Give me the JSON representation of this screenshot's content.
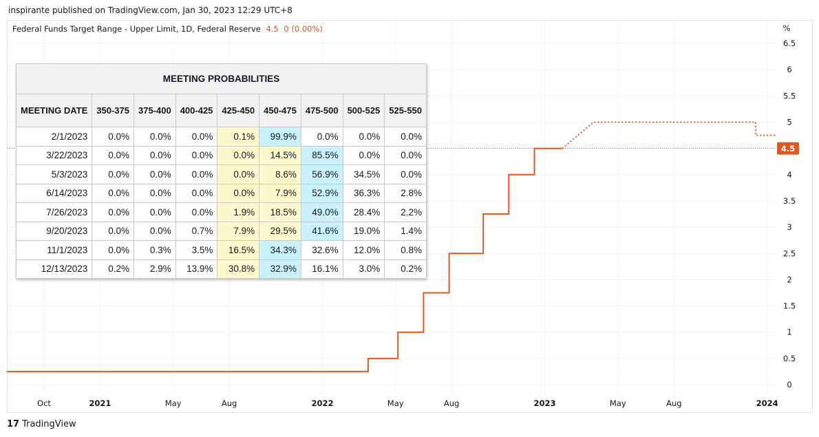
{
  "header": {
    "published": "inspirante published on TradingView.com, Jan 30, 2023 12:29 UTC+8"
  },
  "legend": {
    "name": "Federal Funds Target Range - Upper Limit, 1D, Federal Reserve",
    "value": "4.5",
    "change": "0 (0.00%)"
  },
  "footer": {
    "logo_mark": "17",
    "brand": "TradingView"
  },
  "colors": {
    "line": "#e1571c",
    "grid": "#f0f3fa",
    "text": "#131722",
    "yellow_cell": "#fcf8cc",
    "blue_cell": "#c9f2fb"
  },
  "chart_data": [
    {
      "type": "line",
      "x_axis": {
        "ticks": [
          {
            "label": "Oct",
            "x": "2020-10-01",
            "bold": false
          },
          {
            "label": "2021",
            "x": "2021-01-01",
            "bold": true
          },
          {
            "label": "May",
            "x": "2021-05-01",
            "bold": false
          },
          {
            "label": "Aug",
            "x": "2021-08-01",
            "bold": false
          },
          {
            "label": "2022",
            "x": "2022-01-01",
            "bold": true
          },
          {
            "label": "May",
            "x": "2022-05-01",
            "bold": false
          },
          {
            "label": "Aug",
            "x": "2022-08-01",
            "bold": false
          },
          {
            "label": "2023",
            "x": "2023-01-01",
            "bold": true
          },
          {
            "label": "May",
            "x": "2023-05-01",
            "bold": false
          },
          {
            "label": "Aug",
            "x": "2023-08-01",
            "bold": false
          },
          {
            "label": "2024",
            "x": "2024-01-01",
            "bold": true
          }
        ],
        "range": [
          "2020-08-01",
          "2024-01-15"
        ]
      },
      "y_axis": {
        "unit_label": "%",
        "ticks": [
          "0",
          "0.5",
          "1",
          "1.5",
          "2",
          "2.5",
          "3",
          "3.5",
          "4",
          "4.5",
          "5",
          "5.5",
          "6",
          "6.5"
        ],
        "ylim": [
          0,
          6.5
        ],
        "position": "right"
      },
      "current_value_label": "4.5",
      "current_value": 4.5,
      "series": [
        {
          "style": "solid",
          "points": [
            [
              "2020-08-01",
              0.25
            ],
            [
              "2022-03-17",
              0.25
            ],
            [
              "2022-03-17",
              0.5
            ],
            [
              "2022-05-05",
              0.5
            ],
            [
              "2022-05-05",
              1.0
            ],
            [
              "2022-06-16",
              1.0
            ],
            [
              "2022-06-16",
              1.75
            ],
            [
              "2022-07-28",
              1.75
            ],
            [
              "2022-07-28",
              2.5
            ],
            [
              "2022-09-22",
              2.5
            ],
            [
              "2022-09-22",
              3.25
            ],
            [
              "2022-11-03",
              3.25
            ],
            [
              "2022-11-03",
              4.0
            ],
            [
              "2022-12-15",
              4.0
            ],
            [
              "2022-12-15",
              4.5
            ],
            [
              "2023-01-30",
              4.5
            ]
          ]
        },
        {
          "style": "dotted",
          "points": [
            [
              "2023-01-30",
              4.5
            ],
            [
              "2023-03-22",
              5.0
            ],
            [
              "2023-12-13",
              5.0
            ],
            [
              "2023-12-13",
              4.75
            ],
            [
              "2024-01-15",
              4.75
            ]
          ]
        }
      ]
    },
    {
      "type": "table",
      "title": "MEETING PROBABILITIES",
      "columns": [
        "MEETING DATE",
        "350-375",
        "375-400",
        "400-425",
        "425-450",
        "450-475",
        "475-500",
        "500-525",
        "525-550"
      ],
      "rows": [
        {
          "date": "2/1/2023",
          "cells": [
            "0.0%",
            "0.0%",
            "0.0%",
            "0.1%",
            "99.9%",
            "0.0%",
            "0.0%",
            "0.0%"
          ],
          "hl": {
            "3": "yellow",
            "4": "blue"
          }
        },
        {
          "date": "3/22/2023",
          "cells": [
            "0.0%",
            "0.0%",
            "0.0%",
            "0.0%",
            "14.5%",
            "85.5%",
            "0.0%",
            "0.0%"
          ],
          "hl": {
            "3": "yellow",
            "4": "yellow",
            "5": "blue"
          }
        },
        {
          "date": "5/3/2023",
          "cells": [
            "0.0%",
            "0.0%",
            "0.0%",
            "0.0%",
            "8.6%",
            "56.9%",
            "34.5%",
            "0.0%"
          ],
          "hl": {
            "3": "yellow",
            "4": "yellow",
            "5": "blue"
          }
        },
        {
          "date": "6/14/2023",
          "cells": [
            "0.0%",
            "0.0%",
            "0.0%",
            "0.0%",
            "7.9%",
            "52.9%",
            "36.3%",
            "2.8%"
          ],
          "hl": {
            "3": "yellow",
            "4": "yellow",
            "5": "blue"
          }
        },
        {
          "date": "7/26/2023",
          "cells": [
            "0.0%",
            "0.0%",
            "0.0%",
            "1.9%",
            "18.5%",
            "49.0%",
            "28.4%",
            "2.2%"
          ],
          "hl": {
            "3": "yellow",
            "4": "yellow",
            "5": "blue"
          }
        },
        {
          "date": "9/20/2023",
          "cells": [
            "0.0%",
            "0.0%",
            "0.7%",
            "7.9%",
            "29.5%",
            "41.6%",
            "19.0%",
            "1.4%"
          ],
          "hl": {
            "3": "yellow",
            "4": "yellow",
            "5": "blue"
          }
        },
        {
          "date": "11/1/2023",
          "cells": [
            "0.0%",
            "0.3%",
            "3.5%",
            "16.5%",
            "34.3%",
            "32.6%",
            "12.0%",
            "0.8%"
          ],
          "hl": {
            "3": "yellow",
            "4": "blue"
          }
        },
        {
          "date": "12/13/2023",
          "cells": [
            "0.2%",
            "2.9%",
            "13.9%",
            "30.8%",
            "32.9%",
            "16.1%",
            "3.0%",
            "0.2%"
          ],
          "hl": {
            "3": "yellow",
            "4": "blue"
          }
        }
      ]
    }
  ]
}
